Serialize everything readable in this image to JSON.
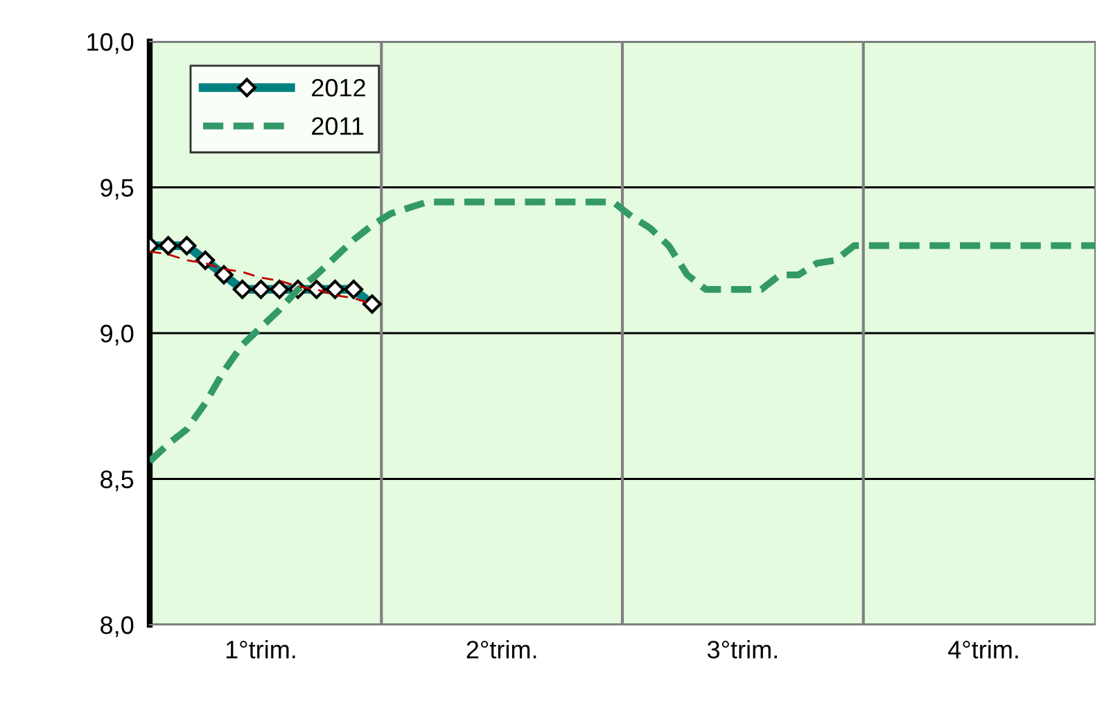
{
  "chart_data": {
    "type": "line",
    "categories": [
      null,
      null,
      null,
      null,
      null,
      null,
      "1°trim.",
      null,
      null,
      null,
      null,
      null,
      null,
      null,
      null,
      null,
      null,
      null,
      null,
      "2°trim.",
      null,
      null,
      null,
      null,
      null,
      null,
      null,
      null,
      null,
      null,
      null,
      null,
      "3°trim.",
      null,
      null,
      null,
      null,
      null,
      null,
      null,
      null,
      null,
      null,
      null,
      null,
      "4°trim.",
      null,
      null,
      null,
      null,
      null,
      null
    ],
    "ylim": [
      8.0,
      10.0
    ],
    "yticks": [
      {
        "value": 8.0,
        "label": "8,0"
      },
      {
        "value": 8.5,
        "label": "8,5"
      },
      {
        "value": 9.0,
        "label": "9,0"
      },
      {
        "value": 9.5,
        "label": "9,5"
      },
      {
        "value": 10.0,
        "label": "10,0"
      }
    ],
    "grid": true,
    "legend": "top left",
    "series": [
      {
        "name": "2012",
        "color": "#008080",
        "marker": "diamond",
        "line_style": "solid",
        "values": [
          9.3,
          9.3,
          9.3,
          9.25,
          9.2,
          9.15,
          9.15,
          9.15,
          9.15,
          9.15,
          9.15,
          9.15,
          9.1,
          null,
          null,
          null,
          null,
          null,
          null,
          null,
          null,
          null,
          null,
          null,
          null,
          null,
          null,
          null,
          null,
          null,
          null,
          null,
          null,
          null,
          null,
          null,
          null,
          null,
          null,
          null,
          null,
          null,
          null,
          null,
          null,
          null,
          null,
          null,
          null,
          null,
          null,
          null
        ]
      },
      {
        "name": "2011",
        "color": "#339966",
        "marker": "none",
        "line_style": "dashed",
        "values": [
          8.56,
          8.62,
          8.67,
          8.76,
          8.87,
          8.96,
          9.02,
          9.08,
          9.15,
          9.2,
          9.26,
          9.32,
          9.37,
          9.41,
          9.43,
          9.45,
          9.45,
          9.45,
          9.45,
          9.45,
          9.45,
          9.45,
          9.45,
          9.45,
          9.45,
          9.45,
          9.4,
          9.36,
          9.3,
          9.2,
          9.15,
          9.15,
          9.15,
          9.15,
          9.2,
          9.2,
          9.24,
          9.25,
          9.3,
          9.3,
          9.3,
          9.3,
          9.3,
          9.3,
          9.3,
          9.3,
          9.3,
          9.3,
          9.3,
          9.3,
          9.3,
          9.3
        ]
      },
      {
        "color": "#c00000",
        "marker": "none",
        "line_style": "dashed",
        "values": [
          9.28,
          9.27,
          9.25,
          9.24,
          9.22,
          9.21,
          9.19,
          9.18,
          9.16,
          9.15,
          9.13,
          9.12,
          9.1,
          null,
          null,
          null,
          null,
          null,
          null,
          null,
          null,
          null,
          null,
          null,
          null,
          null,
          null,
          null,
          null,
          null,
          null,
          null,
          null,
          null,
          null,
          null,
          null,
          null,
          null,
          null,
          null,
          null,
          null,
          null,
          null,
          null,
          null,
          null,
          null,
          null,
          null,
          null
        ]
      }
    ]
  }
}
